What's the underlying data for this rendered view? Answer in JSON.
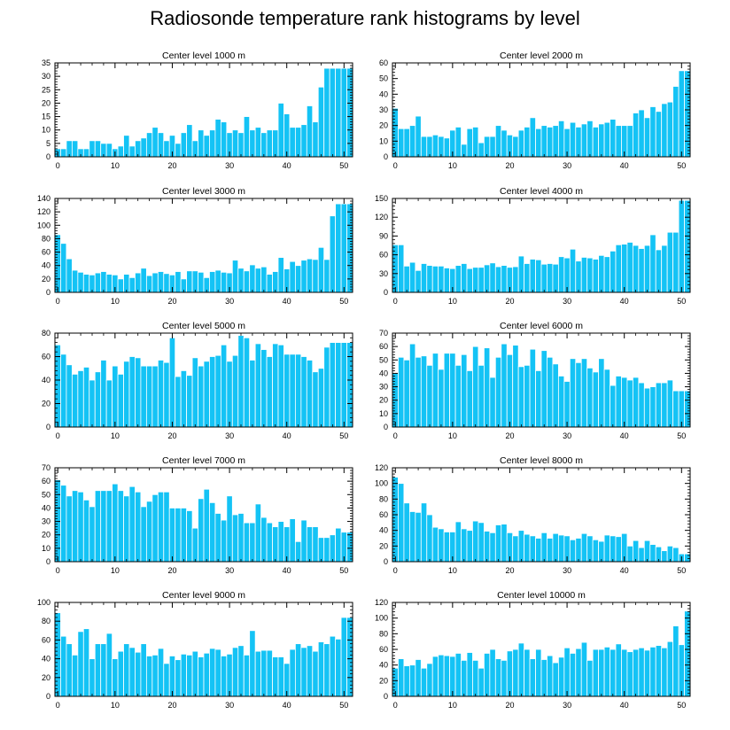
{
  "title": "Radiosonde temperature rank histograms by level",
  "style": {
    "bar_color": "#14C3F5",
    "bar_edge": "#ffffff",
    "axis_color": "#000000"
  },
  "chart_data": [
    {
      "type": "bar",
      "title": "Center level 1000 m",
      "xlim": [
        -0.5,
        51.5
      ],
      "ylim": [
        0,
        35
      ],
      "xticks": [
        0,
        10,
        20,
        30,
        40,
        50
      ],
      "yticks": [
        0,
        5,
        10,
        15,
        20,
        25,
        30,
        35
      ],
      "values": [
        3,
        3,
        6,
        6,
        3,
        3,
        6,
        6,
        5,
        5,
        3,
        4,
        8,
        4,
        6,
        7,
        9,
        11,
        9,
        6,
        8,
        5,
        9,
        12,
        6,
        10,
        8,
        10,
        14,
        13,
        9,
        10,
        9,
        15,
        10,
        11,
        9,
        10,
        10,
        20,
        16,
        11,
        11,
        12,
        19,
        13,
        26,
        33,
        33,
        33,
        33,
        33
      ]
    },
    {
      "type": "bar",
      "title": "Center level 2000 m",
      "xlim": [
        -0.5,
        51.5
      ],
      "ylim": [
        0,
        60
      ],
      "xticks": [
        0,
        10,
        20,
        30,
        40,
        50
      ],
      "yticks": [
        0,
        10,
        20,
        30,
        40,
        50,
        60
      ],
      "values": [
        31,
        18,
        18,
        20,
        26,
        13,
        13,
        14,
        13,
        12,
        17,
        19,
        8,
        18,
        19,
        9,
        13,
        13,
        20,
        17,
        14,
        13,
        17,
        19,
        25,
        18,
        20,
        19,
        20,
        23,
        18,
        22,
        19,
        21,
        23,
        19,
        21,
        22,
        24,
        20,
        20,
        20,
        28,
        30,
        25,
        32,
        29,
        34,
        35,
        45,
        55,
        55
      ]
    },
    {
      "type": "bar",
      "title": "Center level 3000 m",
      "xlim": [
        -0.5,
        51.5
      ],
      "ylim": [
        0,
        140
      ],
      "xticks": [
        0,
        10,
        20,
        30,
        40,
        50
      ],
      "yticks": [
        0,
        20,
        40,
        60,
        80,
        100,
        120,
        140
      ],
      "values": [
        86,
        73,
        50,
        33,
        30,
        27,
        26,
        29,
        31,
        27,
        26,
        20,
        27,
        22,
        29,
        36,
        25,
        29,
        31,
        28,
        26,
        31,
        20,
        32,
        32,
        30,
        22,
        31,
        33,
        30,
        29,
        48,
        36,
        32,
        41,
        36,
        38,
        27,
        31,
        52,
        35,
        46,
        40,
        48,
        50,
        49,
        67,
        49,
        114,
        132,
        132,
        132
      ]
    },
    {
      "type": "bar",
      "title": "Center level 4000 m",
      "xlim": [
        -0.5,
        51.5
      ],
      "ylim": [
        0,
        150
      ],
      "xticks": [
        0,
        10,
        20,
        30,
        40,
        50
      ],
      "yticks": [
        0,
        30,
        60,
        90,
        120,
        150
      ],
      "values": [
        76,
        76,
        42,
        48,
        35,
        46,
        43,
        42,
        42,
        39,
        38,
        43,
        46,
        38,
        40,
        40,
        44,
        47,
        41,
        43,
        40,
        41,
        58,
        46,
        53,
        52,
        45,
        46,
        45,
        57,
        55,
        69,
        50,
        56,
        55,
        53,
        59,
        57,
        66,
        76,
        77,
        80,
        75,
        70,
        75,
        92,
        68,
        75,
        96,
        96,
        147,
        147
      ]
    },
    {
      "type": "bar",
      "title": "Center level 5000 m",
      "xlim": [
        -0.5,
        51.5
      ],
      "ylim": [
        0,
        80
      ],
      "xticks": [
        0,
        10,
        20,
        30,
        40,
        50
      ],
      "yticks": [
        0,
        20,
        40,
        60,
        80
      ],
      "values": [
        70,
        62,
        53,
        45,
        48,
        51,
        40,
        47,
        57,
        40,
        52,
        45,
        56,
        60,
        59,
        52,
        52,
        52,
        57,
        55,
        76,
        43,
        48,
        44,
        59,
        52,
        56,
        60,
        61,
        70,
        56,
        61,
        78,
        76,
        57,
        71,
        66,
        60,
        71,
        70,
        62,
        62,
        62,
        60,
        57,
        47,
        50,
        68,
        72,
        72,
        72,
        72
      ]
    },
    {
      "type": "bar",
      "title": "Center level 6000 m",
      "xlim": [
        -0.5,
        51.5
      ],
      "ylim": [
        0,
        70
      ],
      "xticks": [
        0,
        10,
        20,
        30,
        40,
        50
      ],
      "yticks": [
        0,
        10,
        20,
        30,
        40,
        50,
        60,
        70
      ],
      "values": [
        40,
        52,
        50,
        62,
        52,
        53,
        46,
        55,
        43,
        55,
        55,
        46,
        54,
        42,
        60,
        46,
        59,
        37,
        52,
        62,
        54,
        61,
        45,
        46,
        58,
        42,
        57,
        52,
        47,
        38,
        34,
        51,
        48,
        51,
        44,
        41,
        51,
        43,
        31,
        38,
        37,
        35,
        37,
        33,
        29,
        30,
        33,
        33,
        35,
        27,
        27,
        27
      ]
    },
    {
      "type": "bar",
      "title": "Center level 7000 m",
      "xlim": [
        -0.5,
        51.5
      ],
      "ylim": [
        0,
        70
      ],
      "xticks": [
        0,
        10,
        20,
        30,
        40,
        50
      ],
      "yticks": [
        0,
        10,
        20,
        30,
        40,
        50,
        60,
        70
      ],
      "values": [
        61,
        57,
        49,
        53,
        52,
        46,
        41,
        53,
        53,
        53,
        58,
        53,
        49,
        56,
        52,
        41,
        45,
        50,
        52,
        52,
        40,
        40,
        40,
        38,
        25,
        47,
        54,
        44,
        36,
        31,
        49,
        35,
        36,
        29,
        29,
        43,
        33,
        29,
        26,
        30,
        26,
        32,
        15,
        31,
        26,
        26,
        18,
        18,
        20,
        25,
        22,
        22
      ]
    },
    {
      "type": "bar",
      "title": "Center level 8000 m",
      "xlim": [
        -0.5,
        51.5
      ],
      "ylim": [
        0,
        120
      ],
      "xticks": [
        0,
        10,
        20,
        30,
        40,
        50
      ],
      "yticks": [
        0,
        20,
        40,
        60,
        80,
        100,
        120
      ],
      "values": [
        108,
        100,
        75,
        64,
        63,
        75,
        60,
        44,
        42,
        38,
        38,
        51,
        42,
        40,
        52,
        50,
        39,
        37,
        47,
        48,
        37,
        33,
        40,
        35,
        33,
        30,
        37,
        30,
        36,
        34,
        33,
        28,
        30,
        36,
        33,
        28,
        26,
        34,
        33,
        32,
        36,
        20,
        27,
        18,
        27,
        22,
        19,
        14,
        20,
        18,
        10,
        10
      ]
    },
    {
      "type": "bar",
      "title": "Center level 9000 m",
      "xlim": [
        -0.5,
        51.5
      ],
      "ylim": [
        0,
        100
      ],
      "xticks": [
        0,
        10,
        20,
        30,
        40,
        50
      ],
      "yticks": [
        0,
        20,
        40,
        60,
        80,
        100
      ],
      "values": [
        89,
        64,
        56,
        44,
        69,
        72,
        40,
        56,
        56,
        67,
        40,
        48,
        56,
        52,
        47,
        56,
        43,
        44,
        51,
        35,
        43,
        39,
        45,
        44,
        48,
        42,
        46,
        51,
        50,
        43,
        45,
        52,
        54,
        44,
        70,
        48,
        49,
        49,
        42,
        42,
        35,
        50,
        56,
        52,
        54,
        48,
        58,
        56,
        64,
        61,
        84,
        84
      ]
    },
    {
      "type": "bar",
      "title": "Center level 10000 m",
      "xlim": [
        -0.5,
        51.5
      ],
      "ylim": [
        0,
        120
      ],
      "xticks": [
        0,
        10,
        20,
        30,
        40,
        50
      ],
      "yticks": [
        0,
        20,
        40,
        60,
        80,
        100,
        120
      ],
      "values": [
        36,
        48,
        39,
        40,
        47,
        36,
        42,
        51,
        53,
        52,
        51,
        55,
        46,
        56,
        46,
        36,
        55,
        60,
        48,
        46,
        58,
        60,
        68,
        60,
        48,
        60,
        47,
        52,
        43,
        50,
        62,
        55,
        61,
        69,
        46,
        60,
        60,
        63,
        60,
        67,
        60,
        57,
        60,
        62,
        59,
        63,
        65,
        62,
        70,
        90,
        66,
        109
      ]
    }
  ]
}
